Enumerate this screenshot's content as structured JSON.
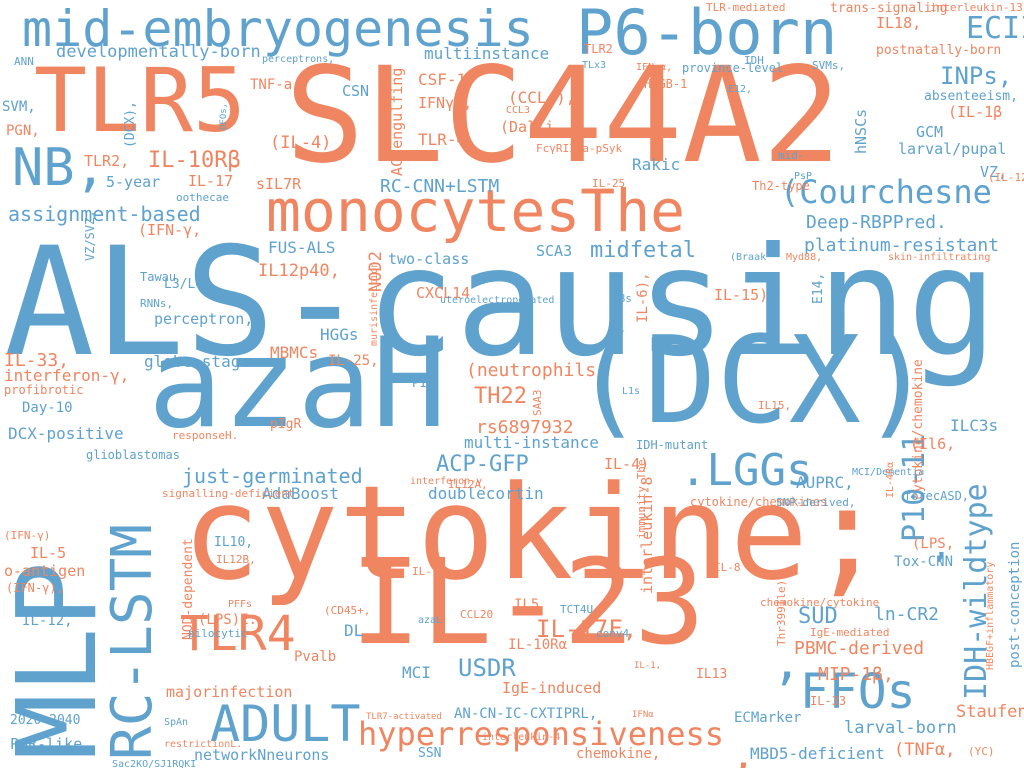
{
  "palette": {
    "blue": "#5fa2cd",
    "orange": "#ef8661"
  },
  "words": [
    {
      "text": "ALS-causing",
      "color": "blue"
    },
    {
      "text": "cytokine;",
      "color": "orange"
    },
    {
      "text": "SLC44A2",
      "color": "orange"
    },
    {
      "text": "IL-23",
      "color": "orange"
    },
    {
      "text": "azaH",
      "color": "blue"
    },
    {
      "text": "(DCX)",
      "color": "blue"
    },
    {
      "text": "MLP",
      "color": "blue"
    },
    {
      "text": "TLR5",
      "color": "orange"
    },
    {
      "text": "P6-born",
      "color": "blue"
    },
    {
      "text": "monocytesThe",
      "color": "orange"
    },
    {
      "text": "mid-embryogenesis",
      "color": "blue"
    },
    {
      "text": "RC-LSTM",
      "color": "blue"
    },
    {
      "text": "NB,",
      "color": "blue"
    },
    {
      "text": "ADULT",
      "color": "blue"
    },
    {
      "text": "TLR4",
      "color": "orange"
    },
    {
      "text": "hyperresponsiveness",
      "color": "orange"
    },
    {
      "text": ".LGGs",
      "color": "blue"
    },
    {
      "text": "’FFOs",
      "color": "blue"
    },
    {
      "text": "(Courchesne",
      "color": "blue"
    },
    {
      "text": "IDH-wildtype",
      "color": "blue"
    },
    {
      "text": "P10-11",
      "color": "blue"
    },
    {
      "text": "’",
      "color": "blue"
    },
    {
      "text": "’",
      "color": "orange"
    },
    {
      "text": "ECII",
      "color": "blue"
    },
    {
      "text": "INPs,",
      "color": "blue"
    },
    {
      "text": "assignment-based",
      "color": "blue"
    },
    {
      "text": "IL-10Rβ",
      "color": "orange"
    },
    {
      "text": "developmentally-born",
      "color": "blue"
    },
    {
      "text": "multiinstance",
      "color": "blue"
    },
    {
      "text": "Deep-RBPPred.",
      "color": "blue"
    },
    {
      "text": "platinum-resistant",
      "color": "blue"
    },
    {
      "text": "RC-CNN+LSTM",
      "color": "blue"
    },
    {
      "text": "midfetal",
      "color": "blue"
    },
    {
      "text": "just-germinated",
      "color": "blue"
    },
    {
      "text": "ACP-GFP",
      "color": "blue"
    },
    {
      "text": "TH22",
      "color": "orange"
    },
    {
      "text": "rs6897932",
      "color": "orange"
    },
    {
      "text": "(neutrophils",
      "color": "orange"
    },
    {
      "text": "IL-17F,",
      "color": "orange"
    },
    {
      "text": "USDR",
      "color": "blue"
    },
    {
      "text": "SUD",
      "color": "blue"
    },
    {
      "text": "PBMC-derived",
      "color": "orange"
    },
    {
      "text": "MIP-1β,",
      "color": "orange"
    },
    {
      "text": "ln-CR2",
      "color": "blue"
    },
    {
      "text": "Staufen",
      "color": "orange"
    },
    {
      "text": "larval-born",
      "color": "blue"
    },
    {
      "text": "MBD5-deficient",
      "color": "blue"
    },
    {
      "text": "(TNFα,",
      "color": "orange"
    },
    {
      "text": "doublecortin",
      "color": "blue"
    },
    {
      "text": "multi-instance",
      "color": "blue"
    },
    {
      "text": "AdaBoost",
      "color": "blue"
    },
    {
      "text": "AUPRC,",
      "color": "blue"
    },
    {
      "text": "ILC3s",
      "color": "blue"
    },
    {
      "text": "IL-33,",
      "color": "orange"
    },
    {
      "text": "globe-stage",
      "color": "blue"
    },
    {
      "text": "interferon-γ,",
      "color": "orange"
    },
    {
      "text": "DCX-positive",
      "color": "blue"
    },
    {
      "text": "IL12p40,",
      "color": "orange"
    },
    {
      "text": "NOD2",
      "color": "orange"
    },
    {
      "text": "FUS-ALS",
      "color": "blue"
    },
    {
      "text": "HGGs",
      "color": "blue"
    },
    {
      "text": "MBMCs",
      "color": "orange"
    },
    {
      "text": "perceptron,",
      "color": "blue"
    },
    {
      "text": "(IFN-γ,",
      "color": "orange"
    },
    {
      "text": "two-class",
      "color": "blue"
    },
    {
      "text": "SCA3",
      "color": "blue"
    },
    {
      "text": "CXCL14",
      "color": "orange"
    },
    {
      "text": "IL-15)",
      "color": "orange"
    },
    {
      "text": "(IL-4)",
      "color": "orange"
    },
    {
      "text": "IL-17",
      "color": "orange"
    },
    {
      "text": "5-year",
      "color": "blue"
    },
    {
      "text": "TLR2,",
      "color": "orange"
    },
    {
      "text": "sIL7R",
      "color": "orange"
    },
    {
      "text": "CSF-1,",
      "color": "orange"
    },
    {
      "text": "IFNγ),",
      "color": "orange"
    },
    {
      "text": "TLR-4",
      "color": "orange"
    },
    {
      "text": "(CCL4),",
      "color": "orange"
    },
    {
      "text": "(Dalli",
      "color": "orange"
    },
    {
      "text": "AC-engulfing",
      "color": "orange"
    },
    {
      "text": "hNSCs",
      "color": "blue"
    },
    {
      "text": "Rakic",
      "color": "blue"
    },
    {
      "text": "GCM",
      "color": "blue"
    },
    {
      "text": "larval/pupal",
      "color": "blue"
    },
    {
      "text": "VZ,",
      "color": "blue"
    },
    {
      "text": "(IL-1β",
      "color": "orange"
    },
    {
      "text": "absenteeism,",
      "color": "blue"
    },
    {
      "text": "postnatally-born",
      "color": "orange"
    },
    {
      "text": "IL18,",
      "color": "orange"
    },
    {
      "text": "IL-4)",
      "color": "orange"
    },
    {
      "text": "(Il6,",
      "color": "orange"
    },
    {
      "text": "IL5",
      "color": "orange"
    },
    {
      "text": "IL-10Rα",
      "color": "orange"
    },
    {
      "text": "MCI",
      "color": "blue"
    },
    {
      "text": "DL",
      "color": "blue"
    },
    {
      "text": "Pvalb",
      "color": "orange"
    },
    {
      "text": "majorinfection",
      "color": "orange"
    },
    {
      "text": "IgE-induced",
      "color": "orange"
    },
    {
      "text": "AN-CN-IC-CXTIPRL,",
      "color": "blue"
    },
    {
      "text": "IL13",
      "color": "orange"
    },
    {
      "text": "ECMarker",
      "color": "blue"
    },
    {
      "text": "networkNneurons",
      "color": "blue"
    },
    {
      "text": "SSN",
      "color": "blue"
    },
    {
      "text": "chemokine,",
      "color": "orange"
    },
    {
      "text": "PQR-like",
      "color": "blue"
    },
    {
      "text": "2020-2040",
      "color": "blue"
    },
    {
      "text": "IL-5",
      "color": "orange"
    },
    {
      "text": "o-antigen",
      "color": "orange"
    },
    {
      "text": "IL-12,",
      "color": "blue"
    },
    {
      "text": "(LPS)E.",
      "color": "orange"
    },
    {
      "text": "IL10,",
      "color": "blue"
    },
    {
      "text": "NOD-dependent",
      "color": "orange"
    },
    {
      "text": "interleukin-8",
      "color": "orange"
    },
    {
      "text": "cytokine/chemokine",
      "color": "orange"
    },
    {
      "text": "post-conception",
      "color": "blue"
    },
    {
      "text": "(LPS,",
      "color": "orange"
    },
    {
      "text": "Tox-CNN",
      "color": "blue"
    },
    {
      "text": "CSN",
      "color": "blue"
    },
    {
      "text": "TNF-a",
      "color": "orange"
    },
    {
      "text": "PGN,",
      "color": "orange"
    },
    {
      "text": "SVM,",
      "color": "blue"
    },
    {
      "text": "(DCX),",
      "color": "blue"
    },
    {
      "text": "ANN",
      "color": "blue"
    },
    {
      "text": "Day-10",
      "color": "blue"
    },
    {
      "text": "pIgR",
      "color": "orange"
    },
    {
      "text": "P19",
      "color": "blue"
    },
    {
      "text": "L1s",
      "color": "blue"
    },
    {
      "text": "SAA3",
      "color": "orange"
    },
    {
      "text": "IL-6),",
      "color": "orange"
    },
    {
      "text": "NBs",
      "color": "blue"
    },
    {
      "text": "IL-25,",
      "color": "orange"
    },
    {
      "text": "E14,",
      "color": "blue"
    },
    {
      "text": "IL15,",
      "color": "orange"
    },
    {
      "text": "IL12A,",
      "color": "orange"
    },
    {
      "text": "IL-13;",
      "color": "orange"
    },
    {
      "text": "IL-8",
      "color": "orange"
    },
    {
      "text": "CCL20",
      "color": "orange"
    },
    {
      "text": "conv4",
      "color": "blue"
    },
    {
      "text": "TCT4U",
      "color": "blue"
    },
    {
      "text": "azaL",
      "color": "blue"
    },
    {
      "text": "(CD45+,",
      "color": "orange"
    },
    {
      "text": "IL12B,",
      "color": "orange"
    },
    {
      "text": "pilocytic",
      "color": "blue"
    },
    {
      "text": "perceptrons,",
      "color": "blue"
    },
    {
      "text": "interleukin-13",
      "color": "orange"
    },
    {
      "text": "trans-signaling",
      "color": "orange"
    },
    {
      "text": "TLR-mediated",
      "color": "orange"
    },
    {
      "text": "province-level",
      "color": "blue"
    },
    {
      "text": "IDH",
      "color": "blue"
    },
    {
      "text": "SVMs,",
      "color": "blue"
    },
    {
      "text": "IFN-α,",
      "color": "orange"
    },
    {
      "text": "HMGB-1",
      "color": "orange"
    },
    {
      "text": "CCL3",
      "color": "orange"
    },
    {
      "text": "FcγRIIIa-pSyk",
      "color": "orange"
    },
    {
      "text": "E12,",
      "color": "blue"
    },
    {
      "text": "mid-",
      "color": "blue"
    },
    {
      "text": "PsP",
      "color": "blue"
    },
    {
      "text": "IL-25",
      "color": "orange"
    },
    {
      "text": "Th2-type",
      "color": "orange"
    },
    {
      "text": "(IL-12",
      "color": "orange"
    },
    {
      "text": "TLR2",
      "color": "orange"
    },
    {
      "text": "TLx3",
      "color": "blue"
    },
    {
      "text": "L3/L4",
      "color": "blue"
    },
    {
      "text": "Tawau",
      "color": "blue"
    },
    {
      "text": "RNNs,",
      "color": "blue"
    },
    {
      "text": "oothecae",
      "color": "blue"
    },
    {
      "text": "(Braak",
      "color": "blue"
    },
    {
      "text": "Myd88,",
      "color": "orange"
    },
    {
      "text": "skin-infiltrating",
      "color": "orange"
    },
    {
      "text": "murisinfection",
      "color": "orange"
    },
    {
      "text": "uteroelectroporated",
      "color": "blue"
    },
    {
      "text": "DFOs,",
      "color": "blue"
    },
    {
      "text": "profibrotic",
      "color": "orange"
    },
    {
      "text": "responseH.",
      "color": "orange"
    },
    {
      "text": "signalling-deficient",
      "color": "orange"
    },
    {
      "text": "glioblastomas",
      "color": "blue"
    },
    {
      "text": "VZ/SVZ,",
      "color": "blue"
    },
    {
      "text": "(IFN-γ),",
      "color": "orange"
    },
    {
      "text": "(IFN-γ)",
      "color": "orange"
    },
    {
      "text": "interferon-γ",
      "color": "orange"
    },
    {
      "text": "IDH-mutant",
      "color": "blue"
    },
    {
      "text": "cytokine/chemokines",
      "color": "orange"
    },
    {
      "text": "SNP-derived,",
      "color": "blue"
    },
    {
      "text": "MCI/Dementia",
      "color": "blue"
    },
    {
      "text": "IL-4Rα",
      "color": "orange"
    },
    {
      "text": "forecASD,",
      "color": "blue"
    },
    {
      "text": "immunity.The",
      "color": "orange"
    },
    {
      "text": "Thr399Ile)",
      "color": "orange"
    },
    {
      "text": "chemokine/cytokine",
      "color": "orange"
    },
    {
      "text": "IgE-mediated",
      "color": "orange"
    },
    {
      "text": "HBEGF+inflammatory",
      "color": "orange"
    },
    {
      "text": "IL-33",
      "color": "orange"
    },
    {
      "text": "(YC)",
      "color": "orange"
    },
    {
      "text": "IL-1,",
      "color": "orange"
    },
    {
      "text": "IFNα",
      "color": "orange"
    },
    {
      "text": "TLR7-activated",
      "color": "orange"
    },
    {
      "text": "interleukin-4",
      "color": "orange"
    },
    {
      "text": "Sac2KO/SJ1RQKI",
      "color": "blue"
    },
    {
      "text": "restrictionL.",
      "color": "orange"
    },
    {
      "text": "SpAn",
      "color": "blue"
    },
    {
      "text": "PFFs",
      "color": "orange"
    },
    {
      "text": "IL-10;",
      "color": "orange"
    }
  ]
}
